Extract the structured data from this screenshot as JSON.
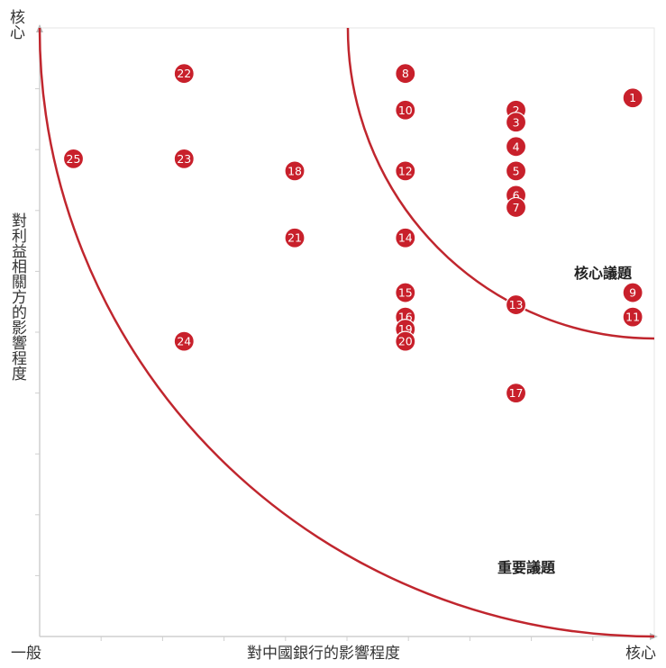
{
  "chart_data": {
    "type": "scatter",
    "xlabel": "對中國銀行的影響程度",
    "ylabel": "對利益相關方的影響程度",
    "x_axis_ends": {
      "low": "一般",
      "high": "核心"
    },
    "y_axis_top": "核心",
    "xlim": [
      0,
      100
    ],
    "ylim": [
      0,
      100
    ],
    "grid": false,
    "zones": [
      {
        "label": "核心議題",
        "boundary": "inner-arc"
      },
      {
        "label": "重要議題",
        "boundary": "outer-arc"
      }
    ],
    "marker_color": "#c8202b",
    "curve_color": "#c0262e",
    "points": [
      {
        "id": "1",
        "x": 96.5,
        "y": 88.5
      },
      {
        "id": "2",
        "x": 77.5,
        "y": 86.5
      },
      {
        "id": "3",
        "x": 77.5,
        "y": 84.5
      },
      {
        "id": "4",
        "x": 77.5,
        "y": 80.5
      },
      {
        "id": "5",
        "x": 77.5,
        "y": 76.5
      },
      {
        "id": "6",
        "x": 77.5,
        "y": 72.5
      },
      {
        "id": "7",
        "x": 77.5,
        "y": 70.5
      },
      {
        "id": "8",
        "x": 59.5,
        "y": 92.5
      },
      {
        "id": "9",
        "x": 96.5,
        "y": 56.5
      },
      {
        "id": "10",
        "x": 59.5,
        "y": 86.5
      },
      {
        "id": "11",
        "x": 96.5,
        "y": 52.5
      },
      {
        "id": "12",
        "x": 59.5,
        "y": 76.5
      },
      {
        "id": "13",
        "x": 77.5,
        "y": 54.5
      },
      {
        "id": "14",
        "x": 59.5,
        "y": 65.5
      },
      {
        "id": "15",
        "x": 59.5,
        "y": 56.5
      },
      {
        "id": "16",
        "x": 59.5,
        "y": 52.5
      },
      {
        "id": "17",
        "x": 77.5,
        "y": 40.0
      },
      {
        "id": "18",
        "x": 41.5,
        "y": 76.5
      },
      {
        "id": "19",
        "x": 59.5,
        "y": 50.5
      },
      {
        "id": "20",
        "x": 59.5,
        "y": 48.5
      },
      {
        "id": "21",
        "x": 41.5,
        "y": 65.5
      },
      {
        "id": "22",
        "x": 23.5,
        "y": 92.5
      },
      {
        "id": "23",
        "x": 23.5,
        "y": 78.5
      },
      {
        "id": "24",
        "x": 23.5,
        "y": 48.5
      },
      {
        "id": "25",
        "x": 5.5,
        "y": 78.5
      }
    ]
  }
}
